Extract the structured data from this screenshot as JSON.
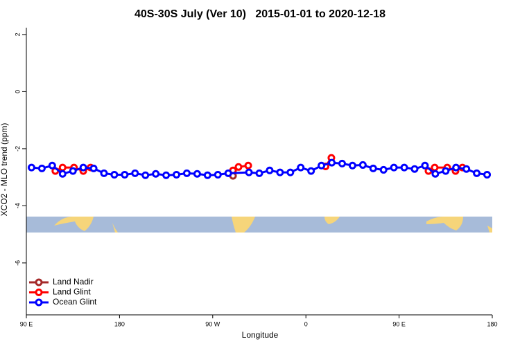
{
  "chart_data": {
    "type": "line",
    "title": "40S-30S July (Ver 10)   2015-01-01 to 2020-12-18",
    "x_label": "Longitude",
    "y_label": "XCO2 - MLO trend (ppm)",
    "xlim": [
      90,
      540
    ],
    "xticks": [
      {
        "value": 90,
        "label": "90 E"
      },
      {
        "value": 180,
        "label": "180"
      },
      {
        "value": 270,
        "label": "90 W"
      },
      {
        "value": 360,
        "label": "0"
      },
      {
        "value": 450,
        "label": "90 E"
      },
      {
        "value": 540,
        "label": "180"
      }
    ],
    "ylim": [
      -7.82,
      2.24
    ],
    "yticks": [
      2,
      0,
      -2,
      -4,
      -6
    ],
    "legend": "bottom-left",
    "series": [
      {
        "name": "Land Nadir",
        "color": "#a52a2a",
        "x": [
          289.6
        ],
        "values": [
          -2.95
        ]
      },
      {
        "name": "Land Glint",
        "color": "#ff0000",
        "x": [
          118,
          125,
          136,
          145,
          152,
          null,
          289.6,
          294.9,
          304.3,
          null,
          379,
          384.6,
          null,
          478.4,
          484.4,
          496.5,
          504.5,
          511.2
        ],
        "values": [
          -2.78,
          -2.66,
          -2.66,
          -2.78,
          -2.66,
          null,
          -2.76,
          -2.64,
          -2.59,
          null,
          -2.62,
          -2.32,
          null,
          -2.78,
          -2.66,
          -2.66,
          -2.78,
          -2.66
        ]
      },
      {
        "name": "Ocean Glint",
        "color": "#0000ff",
        "x": [
          95,
          105,
          115,
          125,
          135,
          145,
          155,
          165,
          175,
          185,
          195,
          205,
          215,
          225,
          235,
          245,
          255,
          265,
          275,
          285,
          305,
          315,
          325,
          335,
          345,
          355,
          365,
          375,
          385,
          395,
          405,
          415,
          425,
          435,
          445,
          455,
          465,
          475,
          485,
          495,
          505,
          515,
          525,
          535
        ],
        "values": [
          -2.66,
          -2.69,
          -2.59,
          -2.88,
          -2.78,
          -2.66,
          -2.69,
          -2.86,
          -2.91,
          -2.91,
          -2.86,
          -2.93,
          -2.88,
          -2.93,
          -2.91,
          -2.86,
          -2.88,
          -2.93,
          -2.91,
          -2.86,
          -2.83,
          -2.86,
          -2.76,
          -2.83,
          -2.83,
          -2.66,
          -2.78,
          -2.59,
          -2.49,
          -2.52,
          -2.59,
          -2.57,
          -2.69,
          -2.74,
          -2.66,
          -2.66,
          -2.71,
          -2.59,
          -2.88,
          -2.78,
          -2.66,
          -2.71,
          -2.86,
          -2.91
        ]
      }
    ]
  }
}
